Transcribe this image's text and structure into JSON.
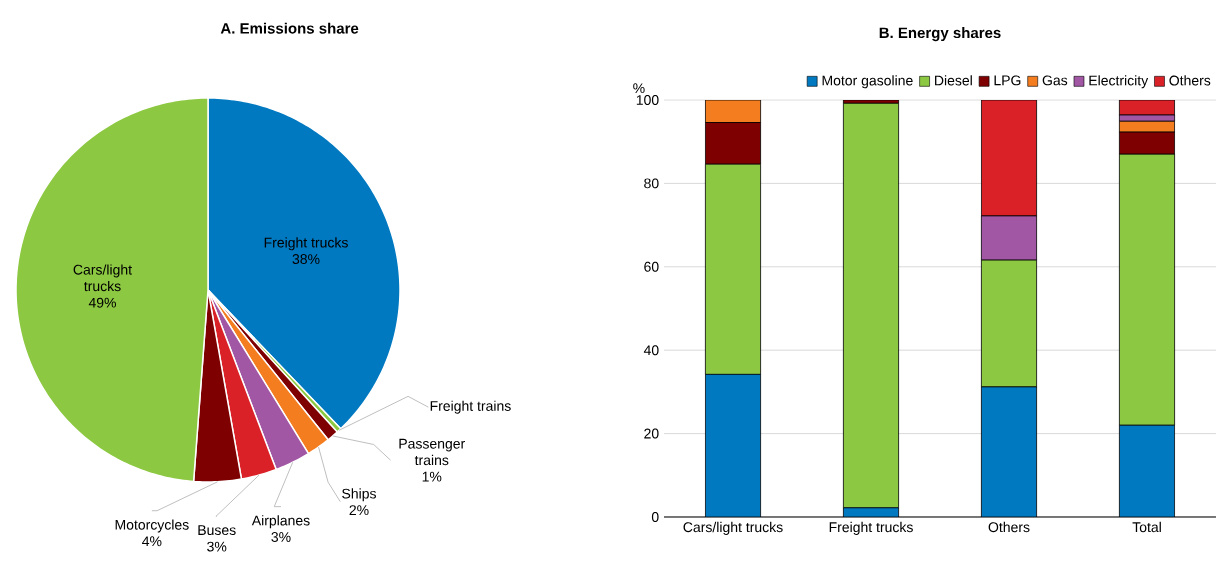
{
  "chart_data": [
    {
      "type": "pie",
      "title": "A. Emissions share",
      "categories": [
        "Freight trucks",
        "Freight trains",
        "Passenger trains",
        "Ships",
        "Airplanes",
        "Buses",
        "Motorcycles",
        "Cars/light trucks"
      ],
      "values": [
        38,
        0.4,
        1,
        2,
        3,
        3,
        4,
        49
      ],
      "value_labels": [
        "38%",
        null,
        "1%",
        "2%",
        "3%",
        "3%",
        "4%",
        "49%"
      ],
      "colors": [
        "#0079c1",
        "#8cc841",
        "#7f0000",
        "#f47d20",
        "#a157a4",
        "#da2128",
        "#7f0000",
        "#8cc841"
      ]
    },
    {
      "type": "bar",
      "stacked": true,
      "title": "B. Energy shares",
      "ylabel": "%",
      "categories": [
        "Cars/light trucks",
        "Freight trucks",
        "Others",
        "Total"
      ],
      "series": [
        {
          "name": "Motor gasoline",
          "color": "#0079c1",
          "values": [
            34.2,
            2.2,
            31.2,
            22
          ]
        },
        {
          "name": "Diesel",
          "color": "#8cc841",
          "values": [
            50.4,
            97,
            30.4,
            65
          ]
        },
        {
          "name": "LPG",
          "color": "#7f0000",
          "values": [
            10,
            0.8,
            0,
            5.3
          ]
        },
        {
          "name": "Gas",
          "color": "#f47d20",
          "values": [
            5.4,
            0,
            0,
            2.6
          ]
        },
        {
          "name": "Electricity",
          "color": "#a157a4",
          "values": [
            0,
            0,
            10.6,
            1.5
          ]
        },
        {
          "name": "Others",
          "color": "#da2128",
          "values": [
            0,
            0,
            27.8,
            3.6
          ]
        }
      ],
      "ylim": [
        0,
        100
      ],
      "yticks": [
        0,
        20,
        40,
        60,
        80,
        100
      ],
      "grid": "y",
      "legend": "top"
    }
  ]
}
